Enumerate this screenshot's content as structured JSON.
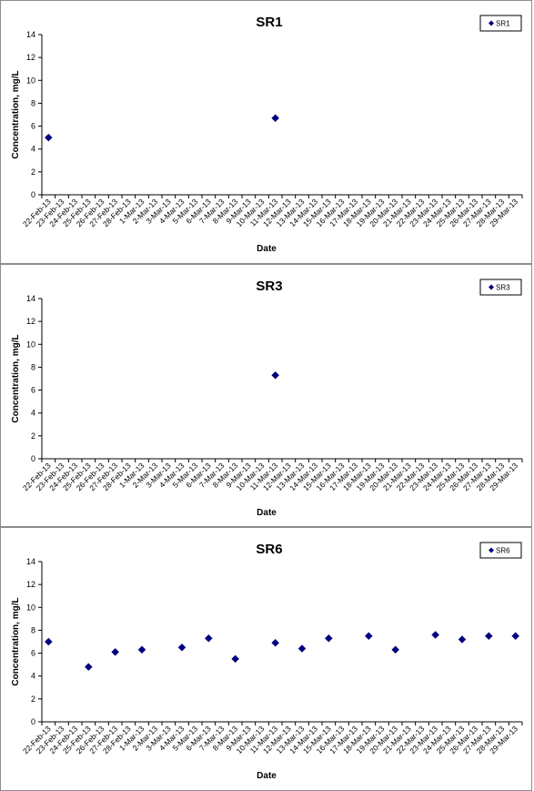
{
  "chart_data": [
    {
      "type": "scatter",
      "title": "SR1",
      "xlabel": "Date",
      "ylabel": "Concentration, mg/L",
      "ylim": [
        0,
        14
      ],
      "yticks": [
        0,
        2,
        4,
        6,
        8,
        10,
        12,
        14
      ],
      "categories": [
        "22-Feb-13",
        "23-Feb-13",
        "24-Feb-13",
        "25-Feb-13",
        "26-Feb-13",
        "27-Feb-13",
        "28-Feb-13",
        "1-Mar-13",
        "2-Mar-13",
        "3-Mar-13",
        "4-Mar-13",
        "5-Mar-13",
        "6-Mar-13",
        "7-Mar-13",
        "8-Mar-13",
        "9-Mar-13",
        "10-Mar-13",
        "11-Mar-13",
        "12-Mar-13",
        "13-Mar-13",
        "14-Mar-13",
        "15-Mar-13",
        "16-Mar-13",
        "17-Mar-13",
        "18-Mar-13",
        "19-Mar-13",
        "20-Mar-13",
        "21-Mar-13",
        "22-Mar-13",
        "23-Mar-13",
        "24-Mar-13",
        "25-Mar-13",
        "26-Mar-13",
        "27-Mar-13",
        "28-Mar-13",
        "29-Mar-13"
      ],
      "legend_position": "top-right",
      "grid": false,
      "series": [
        {
          "name": "SR1",
          "color": "#000080",
          "marker": "diamond",
          "points": [
            {
              "x": "22-Feb-13",
              "y": 5.0
            },
            {
              "x": "11-Mar-13",
              "y": 6.7
            }
          ]
        }
      ]
    },
    {
      "type": "scatter",
      "title": "SR3",
      "xlabel": "Date",
      "ylabel": "Concentration, mg/L",
      "ylim": [
        0,
        14
      ],
      "yticks": [
        0,
        2,
        4,
        6,
        8,
        10,
        12,
        14
      ],
      "categories": [
        "22-Feb-13",
        "23-Feb-13",
        "24-Feb-13",
        "25-Feb-13",
        "26-Feb-13",
        "27-Feb-13",
        "28-Feb-13",
        "1-Mar-13",
        "2-Mar-13",
        "3-Mar-13",
        "4-Mar-13",
        "5-Mar-13",
        "6-Mar-13",
        "7-Mar-13",
        "8-Mar-13",
        "9-Mar-13",
        "10-Mar-13",
        "11-Mar-13",
        "12-Mar-13",
        "13-Mar-13",
        "14-Mar-13",
        "15-Mar-13",
        "16-Mar-13",
        "17-Mar-13",
        "18-Mar-13",
        "19-Mar-13",
        "20-Mar-13",
        "21-Mar-13",
        "22-Mar-13",
        "23-Mar-13",
        "24-Mar-13",
        "25-Mar-13",
        "26-Mar-13",
        "27-Mar-13",
        "28-Mar-13",
        "29-Mar-13"
      ],
      "legend_position": "top-right",
      "grid": false,
      "series": [
        {
          "name": "SR3",
          "color": "#000080",
          "marker": "diamond",
          "points": [
            {
              "x": "11-Mar-13",
              "y": 7.3
            }
          ]
        }
      ]
    },
    {
      "type": "scatter",
      "title": "SR6",
      "xlabel": "Date",
      "ylabel": "Concentration, mg/L",
      "ylim": [
        0,
        14
      ],
      "yticks": [
        0,
        2,
        4,
        6,
        8,
        10,
        12,
        14
      ],
      "categories": [
        "22-Feb-13",
        "23-Feb-13",
        "24-Feb-13",
        "25-Feb-13",
        "26-Feb-13",
        "27-Feb-13",
        "28-Feb-13",
        "1-Mar-13",
        "2-Mar-13",
        "3-Mar-13",
        "4-Mar-13",
        "5-Mar-13",
        "6-Mar-13",
        "7-Mar-13",
        "8-Mar-13",
        "9-Mar-13",
        "10-Mar-13",
        "11-Mar-13",
        "12-Mar-13",
        "13-Mar-13",
        "14-Mar-13",
        "15-Mar-13",
        "16-Mar-13",
        "17-Mar-13",
        "18-Mar-13",
        "19-Mar-13",
        "20-Mar-13",
        "21-Mar-13",
        "22-Mar-13",
        "23-Mar-13",
        "24-Mar-13",
        "25-Mar-13",
        "26-Mar-13",
        "27-Mar-13",
        "28-Mar-13",
        "29-Mar-13"
      ],
      "legend_position": "top-right",
      "grid": false,
      "series": [
        {
          "name": "SR6",
          "color": "#000080",
          "marker": "diamond",
          "points": [
            {
              "x": "22-Feb-13",
              "y": 7.0
            },
            {
              "x": "25-Feb-13",
              "y": 4.8
            },
            {
              "x": "27-Feb-13",
              "y": 6.1
            },
            {
              "x": "1-Mar-13",
              "y": 6.3
            },
            {
              "x": "4-Mar-13",
              "y": 6.5
            },
            {
              "x": "6-Mar-13",
              "y": 7.3
            },
            {
              "x": "8-Mar-13",
              "y": 5.5
            },
            {
              "x": "11-Mar-13",
              "y": 6.9
            },
            {
              "x": "13-Mar-13",
              "y": 6.4
            },
            {
              "x": "15-Mar-13",
              "y": 7.3
            },
            {
              "x": "18-Mar-13",
              "y": 7.5
            },
            {
              "x": "20-Mar-13",
              "y": 6.3
            },
            {
              "x": "23-Mar-13",
              "y": 7.6
            },
            {
              "x": "25-Mar-13",
              "y": 7.2
            },
            {
              "x": "27-Mar-13",
              "y": 7.5
            },
            {
              "x": "29-Mar-13",
              "y": 7.5
            }
          ]
        }
      ]
    }
  ]
}
